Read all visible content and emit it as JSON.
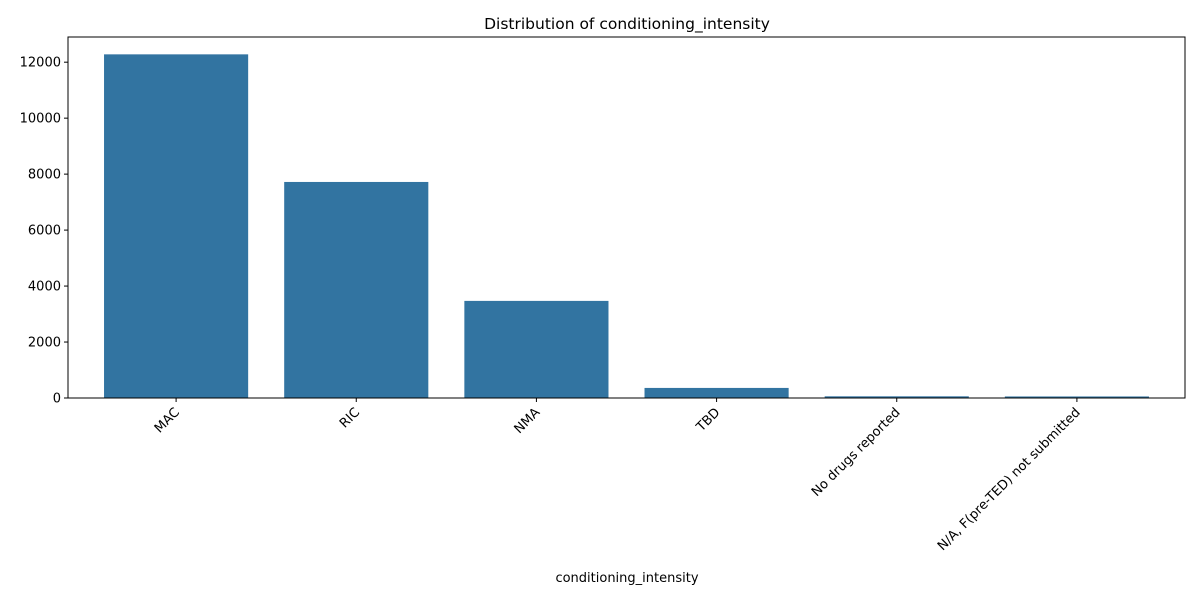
{
  "chart_data": {
    "type": "bar",
    "title": "Distribution of conditioning_intensity",
    "xlabel": "conditioning_intensity",
    "ylabel": "",
    "categories": [
      "MAC",
      "RIC",
      "NMA",
      "TBD",
      "No drugs reported",
      "N/A, F(pre-TED) not submitted"
    ],
    "values": [
      12280,
      7720,
      3470,
      360,
      60,
      55
    ],
    "ylim": [
      0,
      12900
    ],
    "yticks": [
      0,
      2000,
      4000,
      6000,
      8000,
      10000,
      12000
    ],
    "bar_color": "#3274a1",
    "grid": false,
    "legend": "none"
  }
}
